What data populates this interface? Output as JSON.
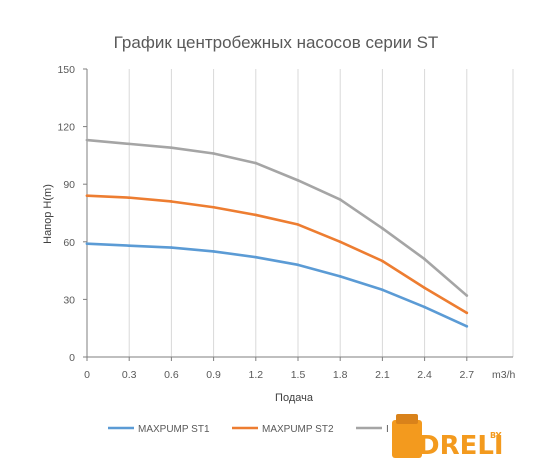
{
  "chart_data": {
    "type": "line",
    "title": "График центробежных насосов серии ST",
    "xlabel": "Подача",
    "ylabel": "Напор H(m)",
    "x_unit": "m3/h",
    "x": [
      0,
      0.3,
      0.6,
      0.9,
      1.2,
      1.5,
      1.8,
      2.1,
      2.4,
      2.7
    ],
    "x_tick_labels": [
      "0",
      "0.3",
      "0.6",
      "0.9",
      "1.2",
      "1.5",
      "1.8",
      "2.1",
      "2.4",
      "2.7"
    ],
    "y_ticks": [
      0,
      30,
      60,
      90,
      120,
      150
    ],
    "ylim": [
      0,
      150
    ],
    "grid": "vertical",
    "legend_position": "bottom",
    "series": [
      {
        "name": "MAXPUMP ST1",
        "color": "#5B9BD5",
        "values": [
          59,
          58,
          57,
          55,
          52,
          48,
          42,
          35,
          26,
          16
        ]
      },
      {
        "name": "MAXPUMP ST2",
        "color": "#ED7D31",
        "values": [
          84,
          83,
          81,
          78,
          74,
          69,
          60,
          50,
          36,
          23
        ]
      },
      {
        "name": "I",
        "color": "#A5A5A5",
        "values": [
          113,
          111,
          109,
          106,
          101,
          92,
          82,
          67,
          51,
          32
        ]
      }
    ]
  },
  "watermark": {
    "text": "DRELI",
    "by": "BY"
  }
}
